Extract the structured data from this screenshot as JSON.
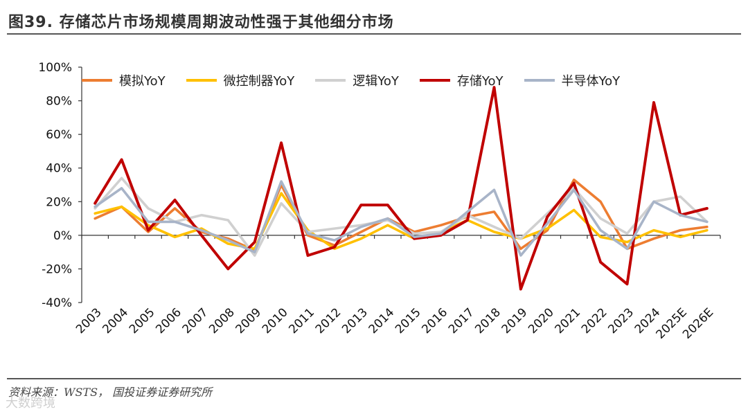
{
  "page": {
    "title": "图39. 存储芯片市场规模周期波动性强于其他细分市场",
    "source": "资料来源：WSTS， 国投证券证券研究所",
    "watermark": "大数跨境"
  },
  "chart_data": {
    "type": "line",
    "title": "",
    "xlabel": "",
    "ylabel": "",
    "ylim": [
      -40,
      100
    ],
    "yticks": [
      -40,
      -20,
      0,
      20,
      40,
      60,
      80,
      100
    ],
    "ytick_labels": [
      "-40%",
      "-20%",
      "0%",
      "20%",
      "40%",
      "60%",
      "80%",
      "100%"
    ],
    "categories": [
      "2003",
      "2004",
      "2005",
      "2006",
      "2007",
      "2008",
      "2009",
      "2010",
      "2011",
      "2012",
      "2013",
      "2014",
      "2015",
      "2016",
      "2017",
      "2018",
      "2019",
      "2020",
      "2021",
      "2022",
      "2023",
      "2024",
      "2025E",
      "2026E"
    ],
    "legend_position": "top",
    "series": [
      {
        "name": "模拟YoY",
        "color": "#ED7D31",
        "values": [
          10,
          17,
          2,
          16,
          2,
          -2,
          -9,
          30,
          0,
          -6,
          2,
          10,
          2,
          6,
          11,
          14,
          -8,
          3,
          33,
          20,
          -8,
          -2,
          3,
          5
        ]
      },
      {
        "name": "微控制器YoY",
        "color": "#FFC000",
        "values": [
          13,
          17,
          6,
          -1,
          4,
          -5,
          -8,
          25,
          3,
          -8,
          -2,
          6,
          -2,
          2,
          9,
          2,
          -2,
          4,
          15,
          -1,
          -4,
          3,
          -1,
          3
        ]
      },
      {
        "name": "逻辑YoY",
        "color": "#D0D0D0",
        "values": [
          16,
          34,
          16,
          8,
          12,
          9,
          -12,
          19,
          2,
          4,
          6,
          9,
          1,
          2,
          12,
          5,
          -2,
          13,
          28,
          10,
          1,
          20,
          23,
          8
        ]
      },
      {
        "name": "存储YoY",
        "color": "#C00000",
        "values": [
          19,
          45,
          3,
          21,
          0,
          -20,
          -4,
          55,
          -12,
          -7,
          18,
          18,
          -2,
          0,
          9,
          88,
          -32,
          11,
          31,
          -16,
          -29,
          79,
          12,
          16
        ]
      },
      {
        "name": "半导体YoY",
        "color": "#A8B4C8",
        "values": [
          17,
          28,
          8,
          8,
          3,
          -3,
          -10,
          32,
          1,
          -3,
          5,
          10,
          -1,
          1,
          14,
          27,
          -12,
          7,
          27,
          3,
          -8,
          20,
          12,
          8
        ]
      }
    ]
  }
}
